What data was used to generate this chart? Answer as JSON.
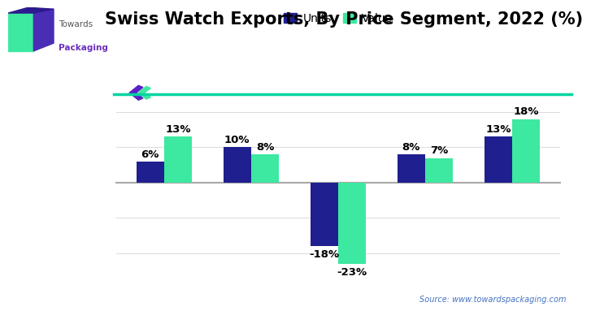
{
  "title": "Swiss Watch Exports, By Price Segment, 2022 (%)",
  "units_values": [
    6,
    10,
    -18,
    8,
    13
  ],
  "value_values": [
    13,
    8,
    -23,
    7,
    18
  ],
  "units_color": "#1f1f8f",
  "value_color": "#3de8a0",
  "bar_width": 0.32,
  "ylim": [
    -28,
    22
  ],
  "source_text": "Source: www.towardspackaging.com",
  "legend_units": "Units",
  "legend_value": "Value",
  "title_fontsize": 15,
  "label_fontsize": 9.5,
  "background_color": "#ffffff",
  "divider_color": "#00d4a0",
  "arrow_color": "#6b2fbe",
  "grid_color": "#dddddd",
  "source_color": "#4472c4"
}
